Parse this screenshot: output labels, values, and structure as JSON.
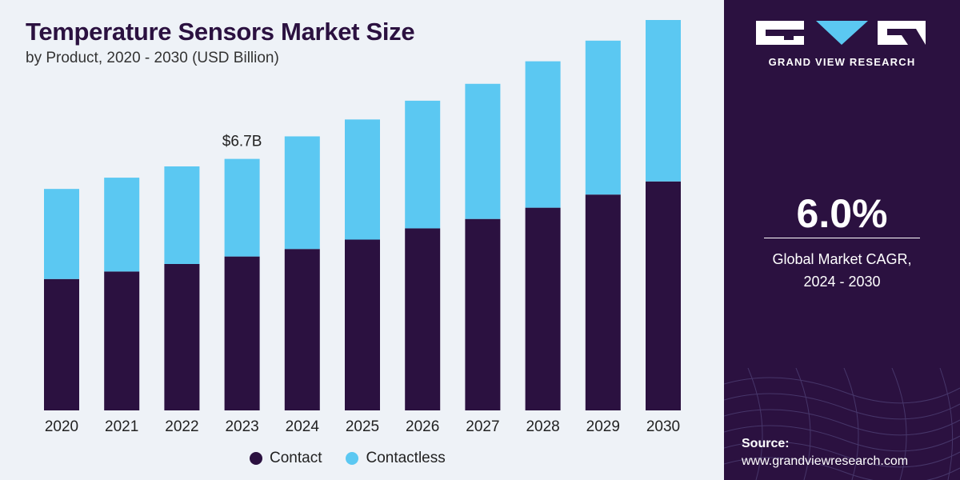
{
  "title": "Temperature Sensors Market Size",
  "subtitle": "by Product, 2020 - 2030 (USD Billion)",
  "chart_data": {
    "type": "bar",
    "stacked": true,
    "categories": [
      "2020",
      "2021",
      "2022",
      "2023",
      "2024",
      "2025",
      "2026",
      "2027",
      "2028",
      "2029",
      "2030"
    ],
    "series": [
      {
        "name": "Contact",
        "color": "#2b1140",
        "values": [
          3.5,
          3.7,
          3.9,
          4.1,
          4.3,
          4.55,
          4.85,
          5.1,
          5.4,
          5.75,
          6.1
        ]
      },
      {
        "name": "Contactless",
        "color": "#5bc8f2",
        "values": [
          2.4,
          2.5,
          2.6,
          2.6,
          3.0,
          3.2,
          3.4,
          3.6,
          3.9,
          4.1,
          4.3
        ]
      }
    ],
    "annotations": [
      {
        "category": "2023",
        "label": "$6.7B"
      }
    ],
    "ylim": [
      0,
      10.4
    ],
    "xlabel": "",
    "ylabel": "",
    "legend_position": "bottom-center",
    "grid": false
  },
  "legend": [
    {
      "label": "Contact",
      "color": "#2b1140"
    },
    {
      "label": "Contactless",
      "color": "#5bc8f2"
    }
  ],
  "side": {
    "logo_text": "GRAND VIEW RESEARCH",
    "cagr_value": "6.0%",
    "cagr_label_line1": "Global Market CAGR,",
    "cagr_label_line2": "2024 - 2030",
    "source_label": "Source:",
    "source_url": "www.grandviewresearch.com"
  }
}
